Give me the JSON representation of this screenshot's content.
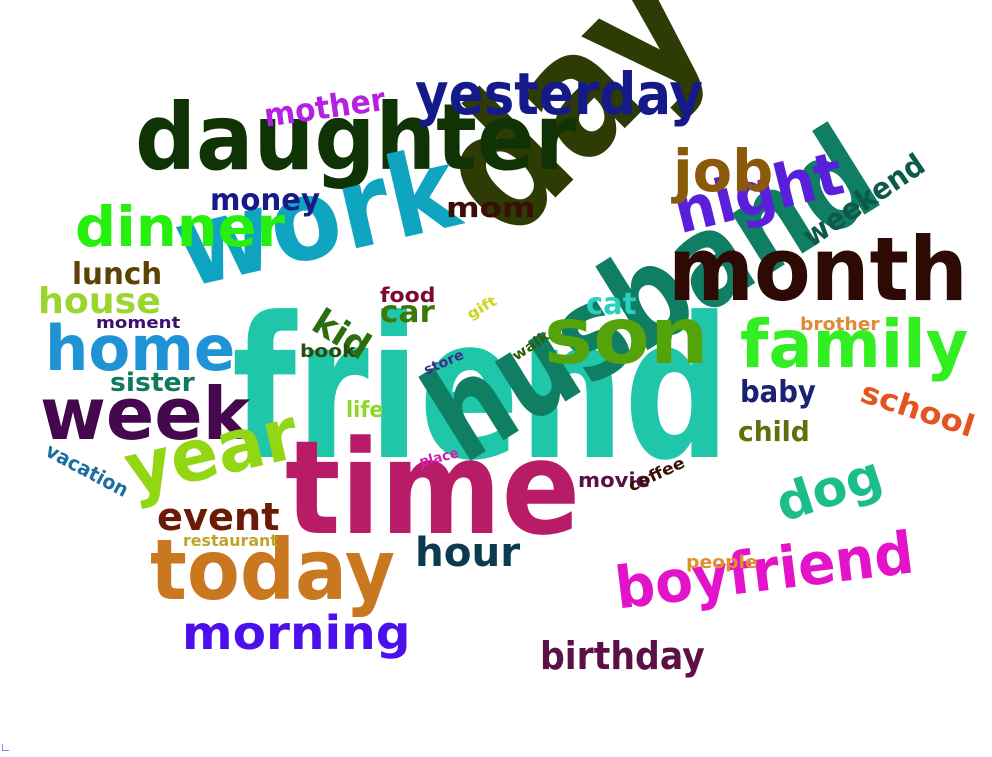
{
  "words": [
    {
      "text": "friend",
      "color": "#1fc6a9"
    },
    {
      "text": "day",
      "color": "#2e3b05"
    },
    {
      "text": "husband",
      "color": "#0f7e62"
    },
    {
      "text": "time",
      "color": "#b81c66"
    },
    {
      "text": "daughter",
      "color": "#0f3305"
    },
    {
      "text": "work",
      "color": "#0fa4c0"
    },
    {
      "text": "month",
      "color": "#2e0a05"
    },
    {
      "text": "today",
      "color": "#c97820"
    },
    {
      "text": "son",
      "color": "#54a30a"
    },
    {
      "text": "week",
      "color": "#45084e"
    },
    {
      "text": "yesterday",
      "color": "#141a8a"
    },
    {
      "text": "family",
      "color": "#33ee22"
    },
    {
      "text": "year",
      "color": "#92d614"
    },
    {
      "text": "boyfriend",
      "color": "#e313c9"
    },
    {
      "text": "home",
      "color": "#1f93d6"
    },
    {
      "text": "night",
      "color": "#5a1fdb"
    },
    {
      "text": "dinner",
      "color": "#27f00f"
    },
    {
      "text": "morning",
      "color": "#4b10eb"
    },
    {
      "text": "job",
      "color": "#8a5a0a"
    },
    {
      "text": "dog",
      "color": "#1bbd8b"
    },
    {
      "text": "hour",
      "color": "#0c3a4e"
    },
    {
      "text": "birthday",
      "color": "#5c1045"
    },
    {
      "text": "event",
      "color": "#6b1a05"
    },
    {
      "text": "house",
      "color": "#9ad62e"
    },
    {
      "text": "weekend",
      "color": "#0e5a4a"
    },
    {
      "text": "school",
      "color": "#e3541f"
    },
    {
      "text": "mother",
      "color": "#b620e0"
    },
    {
      "text": "money",
      "color": "#181a8a"
    },
    {
      "text": "mom",
      "color": "#3b0e05"
    },
    {
      "text": "lunch",
      "color": "#5c4205"
    },
    {
      "text": "baby",
      "color": "#1a2372"
    },
    {
      "text": "child",
      "color": "#5c720b"
    },
    {
      "text": "sister",
      "color": "#0f7a5c"
    },
    {
      "text": "kid",
      "color": "#2c6e0e"
    },
    {
      "text": "car",
      "color": "#3a7a0a"
    },
    {
      "text": "cat",
      "color": "#2ad1c0"
    },
    {
      "text": "food",
      "color": "#7a0a35"
    },
    {
      "text": "vacation",
      "color": "#1a6ea0"
    },
    {
      "text": "movie",
      "color": "#5c1045"
    },
    {
      "text": "life",
      "color": "#8ed62a"
    },
    {
      "text": "moment",
      "color": "#3a0f6e"
    },
    {
      "text": "book",
      "color": "#2e4a12"
    },
    {
      "text": "brother",
      "color": "#e08a32"
    },
    {
      "text": "people",
      "color": "#e0902e"
    },
    {
      "text": "coffee",
      "color": "#3a1005"
    },
    {
      "text": "restaurant",
      "color": "#c0a42a"
    },
    {
      "text": "store",
      "color": "#3a2e8a"
    },
    {
      "text": "walk",
      "color": "#2f5e0a"
    },
    {
      "text": "gift",
      "color": "#c8d620"
    },
    {
      "text": "place",
      "color": "#d21fb0"
    }
  ]
}
